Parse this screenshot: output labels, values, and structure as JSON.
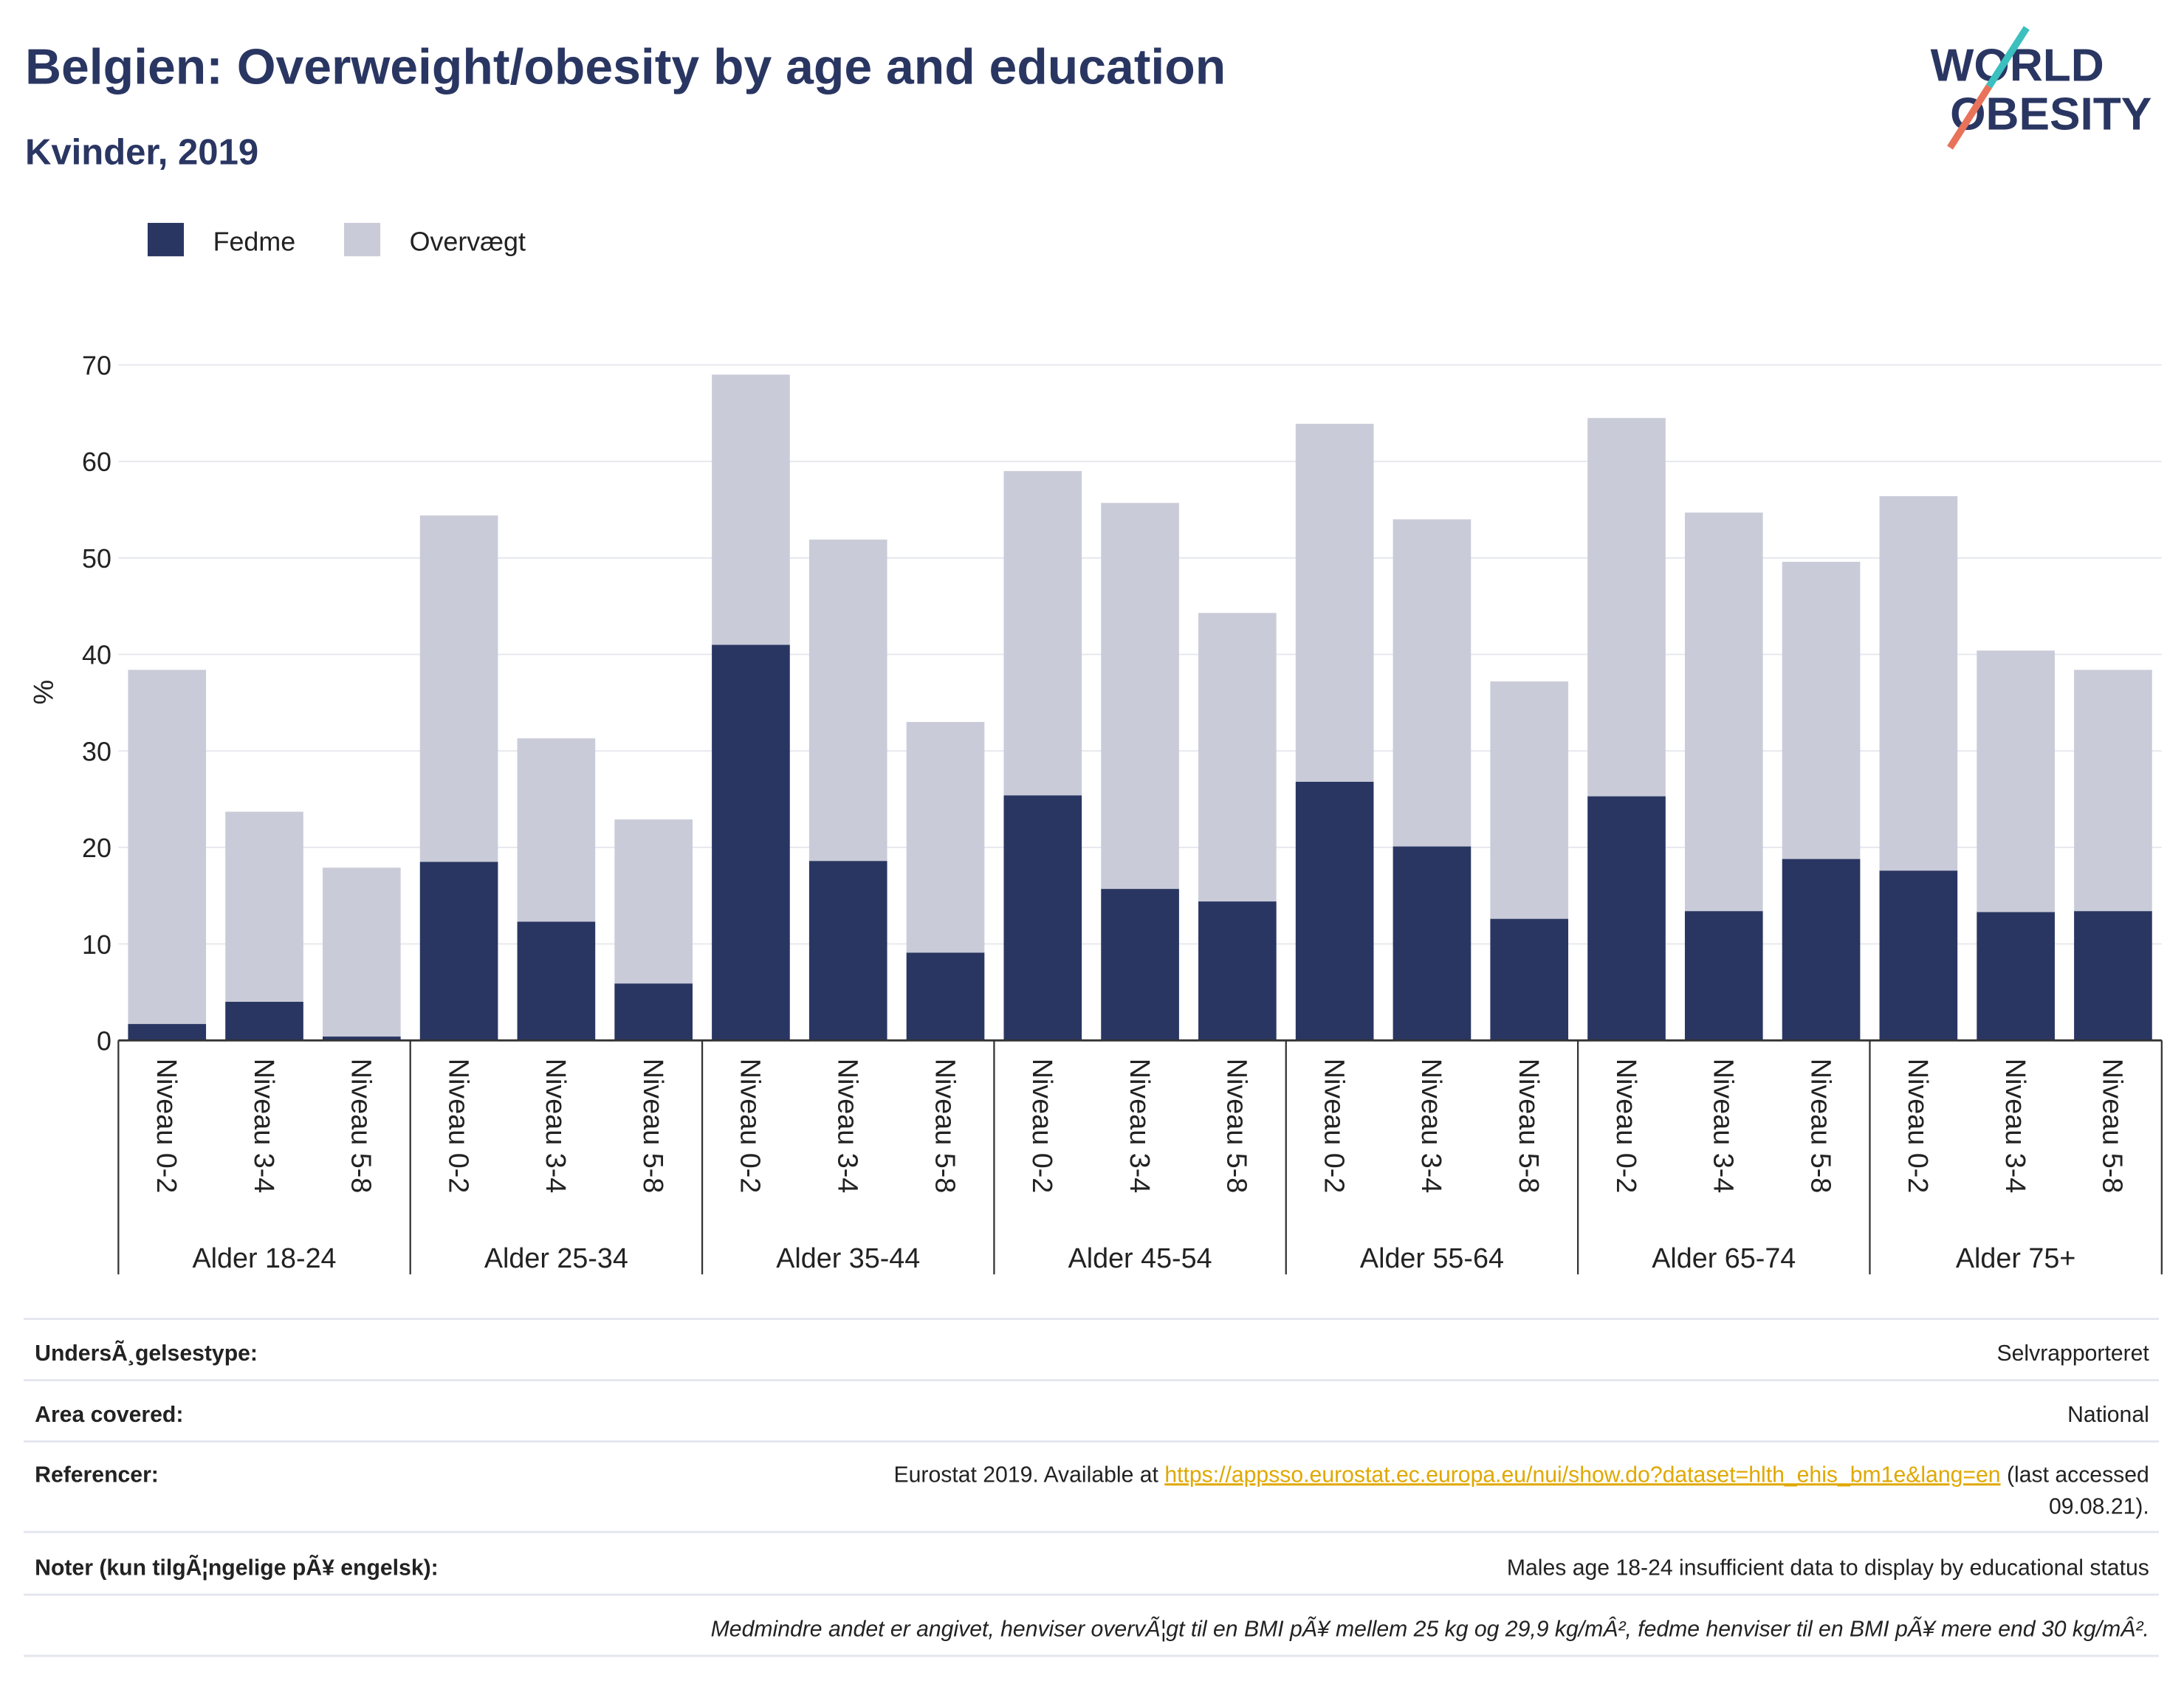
{
  "chart_data": {
    "type": "stacked_bar",
    "title": "Belgien: Overweight/obesity by age and education",
    "subtitle": "Kvinder, 2019",
    "logo": [
      "WORLD",
      "OBESITY"
    ],
    "ylabel": "%",
    "categories": [
      "Niveau 0-2",
      "Niveau 3-4",
      "Niveau 5-8",
      "Niveau 0-2",
      "Niveau 3-4",
      "Niveau 5-8",
      "Niveau 0-2",
      "Niveau 3-4",
      "Niveau 5-8",
      "Niveau 0-2",
      "Niveau 3-4",
      "Niveau 5-8",
      "Niveau 0-2",
      "Niveau 3-4",
      "Niveau 5-8",
      "Niveau 0-2",
      "Niveau 3-4",
      "Niveau 5-8",
      "Niveau 0-2",
      "Niveau 3-4",
      "Niveau 5-8"
    ],
    "groups": [
      "Alder 18-24",
      "Alder 25-34",
      "Alder 35-44",
      "Alder 45-54",
      "Alder 55-64",
      "Alder 65-74",
      "Alder 75+"
    ],
    "series": [
      {
        "name": "Fedme",
        "color": "#2a3662",
        "values": [
          1.7,
          4.0,
          0.4,
          18.5,
          12.3,
          5.9,
          41.0,
          18.6,
          9.1,
          25.4,
          15.7,
          14.4,
          26.8,
          20.1,
          12.6,
          25.3,
          13.4,
          18.8,
          17.6,
          13.3,
          13.4
        ]
      },
      {
        "name": "Overvægt",
        "color": "#c9ccd8",
        "values": [
          36.7,
          19.7,
          17.5,
          35.9,
          19.0,
          17.0,
          28.0,
          33.3,
          23.9,
          33.6,
          40.0,
          29.9,
          37.1,
          33.9,
          24.6,
          39.2,
          41.3,
          30.8,
          38.8,
          27.1,
          25.0
        ]
      }
    ],
    "ylim": [
      0,
      70
    ],
    "yticks": [
      0,
      10,
      20,
      30,
      40,
      50,
      60,
      70
    ],
    "grid": true,
    "legend": "top-left"
  },
  "footer": {
    "rows": [
      {
        "label": "UndersÃ¸gelsestype:",
        "value": "Selvrapporteret"
      },
      {
        "label": "Area covered:",
        "value": "National"
      },
      {
        "label": "Referencer:",
        "value": [
          "Eurostat 2019. Available at ",
          "https://appsso.eurostat.ec.europa.eu/nui/show.do?dataset=hlth_ehis_bm1e&lang=en",
          " (last accessed",
          "09.08.21)."
        ]
      },
      {
        "label": "Noter (kun tilgÃ¦ngelige pÃ¥ engelsk):",
        "value": "Males age 18-24 insufficient data to display by educational status"
      }
    ],
    "note": "Medmindre andet er angivet, henviser overvÃ¦gt til en BMI pÃ¥ mellem 25 kg og 29,9 kg/mÂ², fedme henviser til en BMI pÃ¥ mere end 30 kg/mÂ²."
  }
}
